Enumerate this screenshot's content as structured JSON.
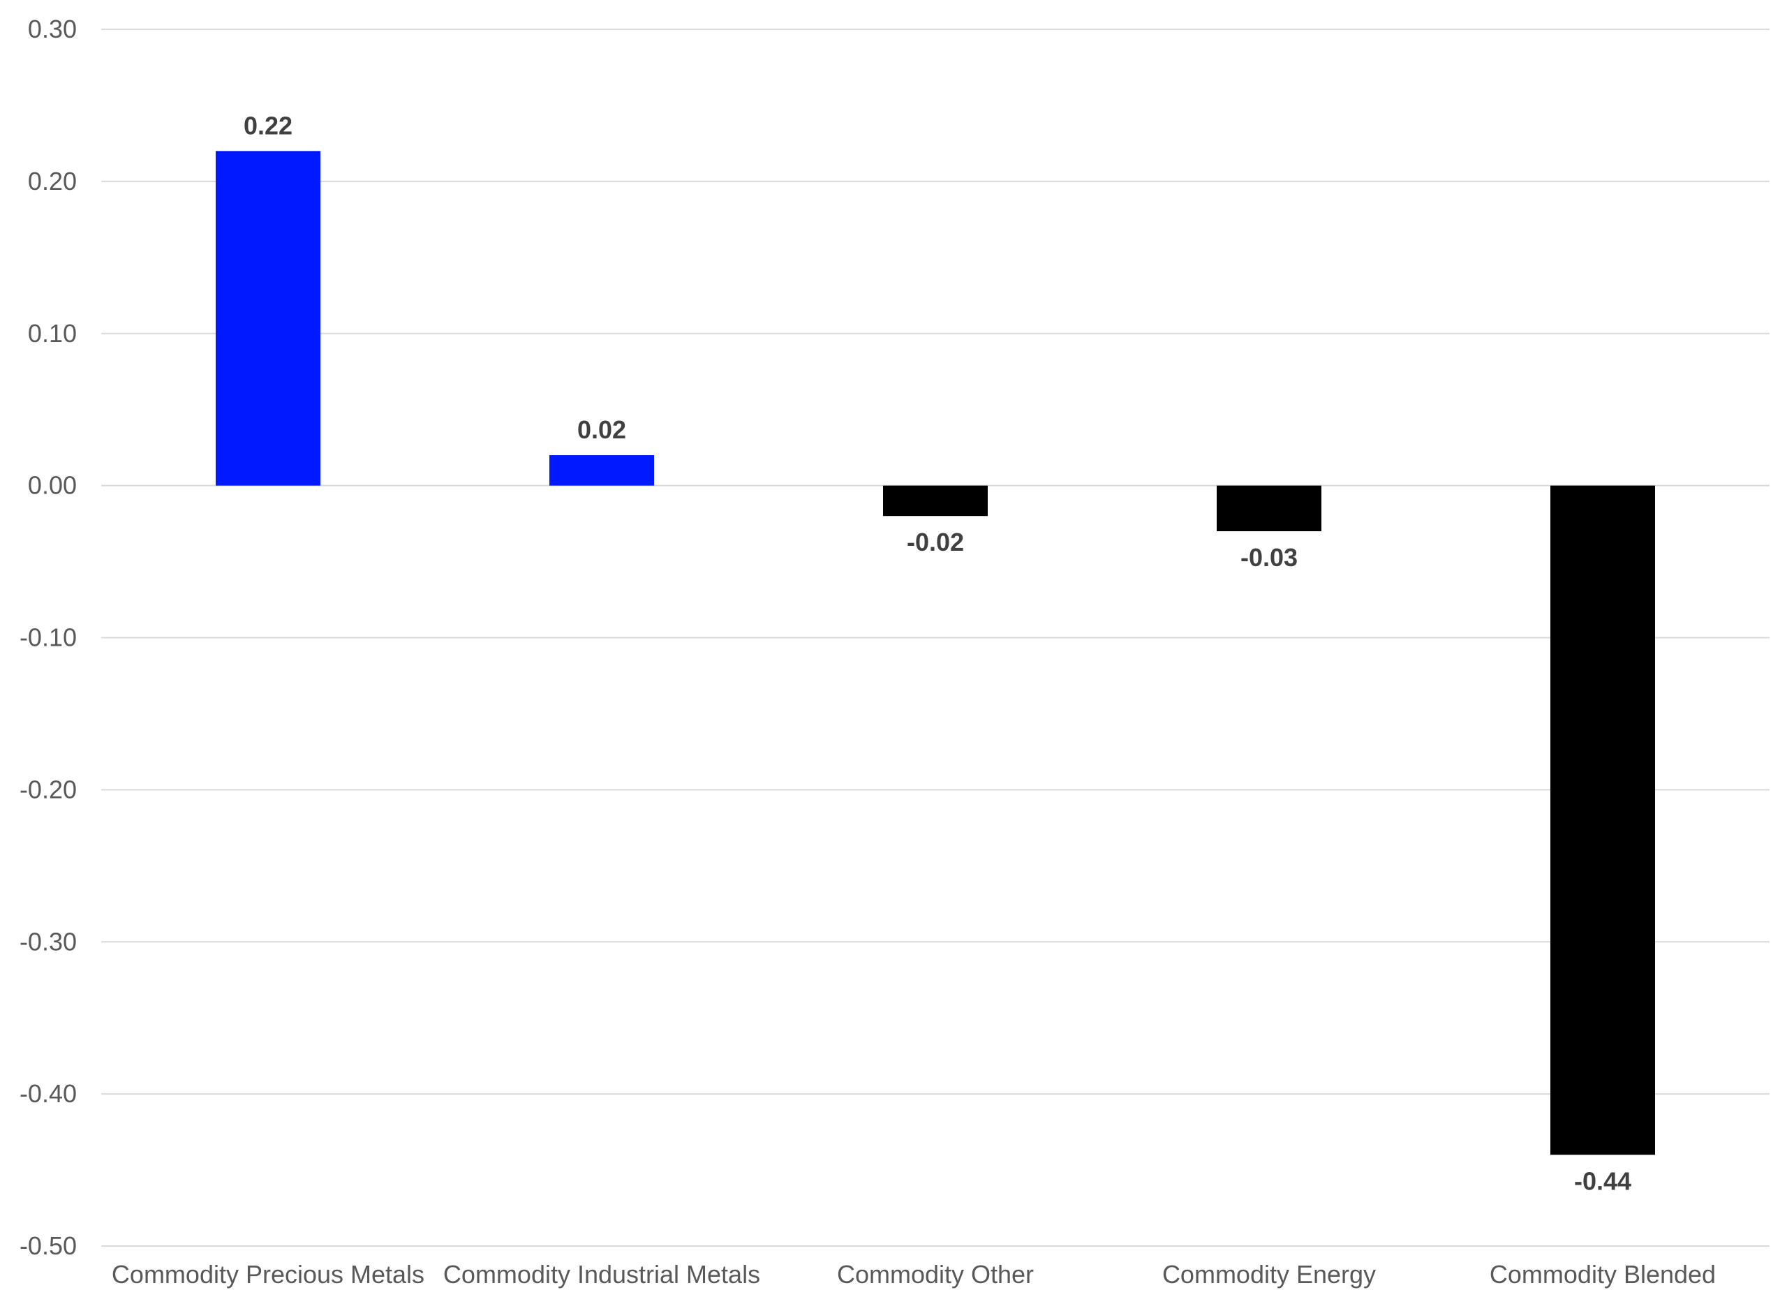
{
  "chart_data": {
    "type": "bar",
    "title": "",
    "xlabel": "",
    "ylabel": "",
    "categories": [
      "Commodity Precious Metals",
      "Commodity Industrial Metals",
      "Commodity Other",
      "Commodity Energy",
      "Commodity Blended"
    ],
    "values": [
      0.22,
      0.02,
      -0.02,
      -0.03,
      -0.44
    ],
    "data_labels": [
      "0.22",
      "0.02",
      "-0.02",
      "-0.03",
      "-0.44"
    ],
    "ylim": [
      -0.5,
      0.3
    ],
    "yticks": [
      0.3,
      0.2,
      0.1,
      0.0,
      -0.1,
      -0.2,
      -0.3,
      -0.4,
      -0.5
    ],
    "ytick_labels": [
      "0.30",
      "0.20",
      "0.10",
      "0.00",
      "-0.10",
      "-0.20",
      "-0.30",
      "-0.40",
      "-0.50"
    ],
    "grid": true,
    "legend": "none",
    "colors": {
      "positive": "#0019ff",
      "negative": "#000000"
    }
  }
}
